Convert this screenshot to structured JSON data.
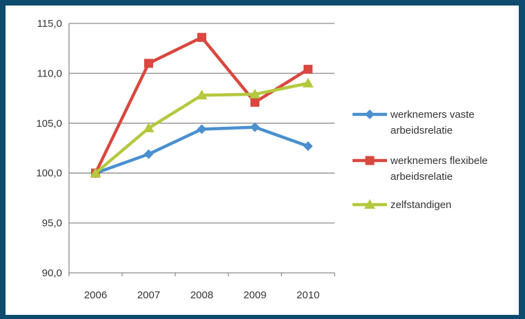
{
  "colors": {
    "border": "#0d4c6f",
    "grid": "#8c8c8c"
  },
  "chart_data": {
    "type": "line",
    "title": "",
    "xlabel": "",
    "ylabel": "",
    "x": [
      "2006",
      "2007",
      "2008",
      "2009",
      "2010"
    ],
    "ylim": [
      90,
      115
    ],
    "yticks": [
      90,
      95,
      100,
      105,
      110,
      115
    ],
    "ytick_labels": [
      "90,0",
      "95,0",
      "100,0",
      "105,0",
      "110,0",
      "115,0"
    ],
    "grid": true,
    "legend_position": "right",
    "series": [
      {
        "name_lines": [
          "werknemers vaste",
          "arbeidsrelatie"
        ],
        "values": [
          100.0,
          101.9,
          104.4,
          104.6,
          102.7
        ],
        "color": "#4a90d0",
        "marker": "diamond"
      },
      {
        "name_lines": [
          "werknemers flexibele",
          "arbeidsrelatie"
        ],
        "values": [
          100.0,
          111.0,
          113.6,
          107.1,
          110.4
        ],
        "color": "#d9473f",
        "marker": "square"
      },
      {
        "name_lines": [
          "zelfstandigen"
        ],
        "values": [
          100.0,
          104.5,
          107.8,
          107.9,
          109.0
        ],
        "color": "#b5c83e",
        "marker": "triangle"
      }
    ]
  }
}
